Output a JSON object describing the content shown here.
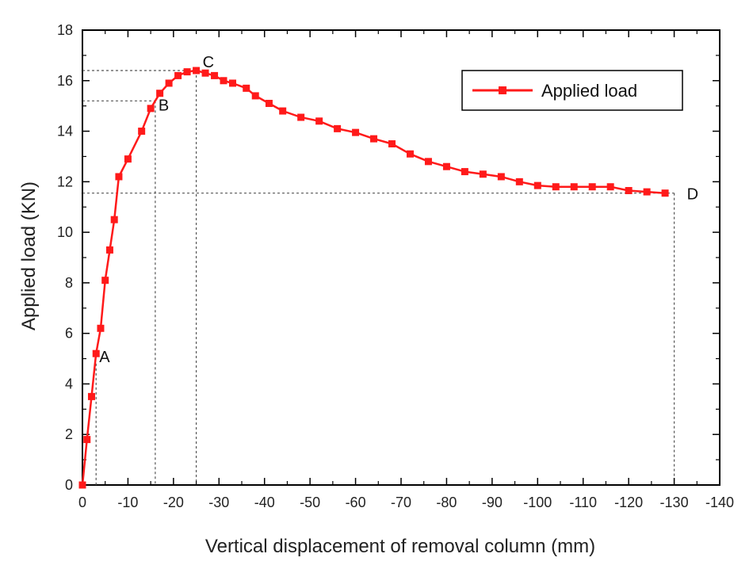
{
  "chart_data": {
    "type": "line",
    "title": "",
    "xlabel": "Vertical displacement of removal column (mm)",
    "ylabel": "Applied load (KN)",
    "xlim": [
      0,
      -140
    ],
    "ylim": [
      0,
      18
    ],
    "x_ticks": [
      "0",
      "-10",
      "-20",
      "-30",
      "-40",
      "-50",
      "-60",
      "-70",
      "-80",
      "-90",
      "-100",
      "-110",
      "-120",
      "-130",
      "-140"
    ],
    "y_ticks": [
      "0",
      "2",
      "4",
      "6",
      "8",
      "10",
      "12",
      "14",
      "16",
      "18"
    ],
    "grid": false,
    "legend": {
      "position": "top-right"
    },
    "colors": {
      "series": "#ff1a1a",
      "reference": "#555555",
      "axes": "#000000"
    },
    "series": [
      {
        "name": "Applied load",
        "x": [
          0,
          -1,
          -2,
          -3,
          -4,
          -5,
          -6,
          -7,
          -8,
          -10,
          -13,
          -15,
          -17,
          -19,
          -21,
          -23,
          -25,
          -27,
          -29,
          -31,
          -33,
          -36,
          -38,
          -41,
          -44,
          -48,
          -52,
          -56,
          -60,
          -64,
          -68,
          -72,
          -76,
          -80,
          -84,
          -88,
          -92,
          -96,
          -100,
          -104,
          -108,
          -112,
          -116,
          -120,
          -124,
          -128
        ],
        "values": [
          0,
          1.8,
          3.5,
          5.2,
          6.2,
          8.1,
          9.3,
          10.5,
          12.2,
          12.9,
          14.0,
          14.9,
          15.5,
          15.9,
          16.2,
          16.35,
          16.4,
          16.3,
          16.2,
          16.0,
          15.9,
          15.7,
          15.4,
          15.1,
          14.8,
          14.55,
          14.4,
          14.1,
          13.95,
          13.7,
          13.5,
          13.1,
          12.8,
          12.6,
          12.4,
          12.3,
          12.2,
          12.0,
          11.85,
          11.8,
          11.8,
          11.8,
          11.8,
          11.65,
          11.6,
          11.55
        ]
      }
    ],
    "annotations": [
      {
        "text": "A",
        "x": -3,
        "y": 4.8
      },
      {
        "text": "B",
        "x": -16,
        "y": 15.2
      },
      {
        "text": "C",
        "x": -25,
        "y": 16.4
      },
      {
        "text": "D",
        "x": -130,
        "y": 11.55
      }
    ]
  }
}
